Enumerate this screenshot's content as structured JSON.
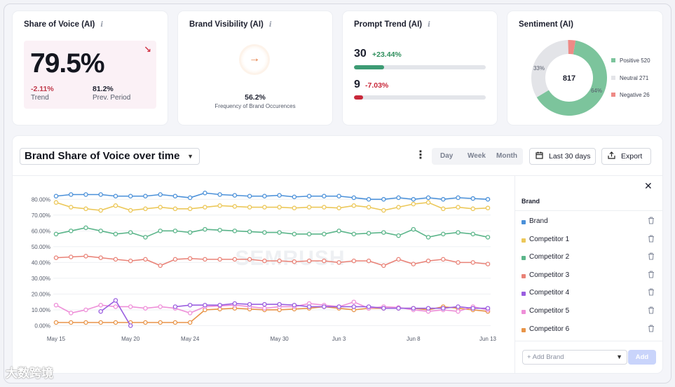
{
  "cards": {
    "share_of_voice": {
      "title": "Share of Voice (AI)",
      "value": "79.5%",
      "trend_value": "-2.11%",
      "trend_label": "Trend",
      "prev_value": "81.2%",
      "prev_label": "Prev. Period"
    },
    "brand_visibility": {
      "title": "Brand Visibility (AI)",
      "value": "56.2%",
      "label": "Frequency of Brand Occurences"
    },
    "prompt_trend": {
      "title": "Prompt Trend (AI)",
      "rows": [
        {
          "count": "30",
          "change": "+23.44%",
          "fill_fraction": 0.23,
          "color": "#3d9b74",
          "change_color": "#2f8f5d"
        },
        {
          "count": "9",
          "change": "-7.03%",
          "fill_fraction": 0.07,
          "color": "#c8283a",
          "change_color": "#c8283a"
        }
      ]
    },
    "sentiment": {
      "title": "Sentiment (AI)",
      "total": "817",
      "positive_pct_label": "64%",
      "neutral_pct_label": "33%",
      "legend": [
        {
          "label": "Positive 520",
          "color": "#7cc49c"
        },
        {
          "label": "Neutral 271",
          "color": "#e3e4e8"
        },
        {
          "label": "Negative 26",
          "color": "#ee8a86"
        }
      ],
      "segments": [
        {
          "name": "Positive",
          "value": 520,
          "color": "#7cc49c"
        },
        {
          "name": "Neutral",
          "value": 271,
          "color": "#e3e4e8"
        },
        {
          "name": "Negative",
          "value": 26,
          "color": "#ee8a86"
        }
      ]
    }
  },
  "main": {
    "title": "Brand Share of Voice over time",
    "periods": [
      "Day",
      "Week",
      "Month"
    ],
    "range_label": "Last 30 days",
    "export_label": "Export",
    "watermark": "SEMRUSH"
  },
  "panel": {
    "header": "Brand",
    "close": "✕",
    "brands": [
      {
        "label": "Brand",
        "color": "#4a90d9"
      },
      {
        "label": "Competitor 1",
        "color": "#ecc85a"
      },
      {
        "label": "Competitor 2",
        "color": "#5bb58a"
      },
      {
        "label": "Competitor 3",
        "color": "#e98277"
      },
      {
        "label": "Competitor 4",
        "color": "#9a5ee0"
      },
      {
        "label": "Competitor 5",
        "color": "#ee8fd8"
      },
      {
        "label": "Competitor 6",
        "color": "#e89448"
      }
    ],
    "add_placeholder": "+ Add Brand",
    "add_button": "Add"
  },
  "page_watermark": "大数跨境",
  "chart_data": {
    "type": "line",
    "x": [
      "May 15",
      "May 16",
      "May 17",
      "May 18",
      "May 19",
      "May 20",
      "May 21",
      "May 22",
      "May 23",
      "May 24",
      "May 25",
      "May 26",
      "May 27",
      "May 28",
      "May 29",
      "May 30",
      "May 31",
      "Jun 1",
      "Jun 2",
      "Jun 3",
      "Jun 4",
      "Jun 5",
      "Jun 6",
      "Jun 7",
      "Jun 8",
      "Jun 9",
      "Jun 10",
      "Jun 11",
      "Jun 12",
      "Jun 13"
    ],
    "xticks": [
      "May 15",
      "May 20",
      "May 24",
      "May 30",
      "Jun 3",
      "Jun 8",
      "Jun 13"
    ],
    "yticks": [
      "0.00%",
      "10.00%",
      "20.00%",
      "30.00%",
      "40.00%",
      "50.00%",
      "60.00%",
      "70.00%",
      "80.00%"
    ],
    "ylim": [
      -2,
      85
    ],
    "grid": true,
    "series": [
      {
        "name": "Brand",
        "color": "#4a90d9",
        "values": [
          82,
          83,
          83,
          83,
          82,
          82,
          82,
          83,
          82,
          81,
          84,
          83,
          82.5,
          82,
          82,
          82.5,
          81.5,
          82,
          82,
          82,
          81,
          80,
          80,
          81,
          80,
          81,
          80,
          81,
          80.5,
          80
        ]
      },
      {
        "name": "Competitor 1",
        "color": "#ecc85a",
        "values": [
          78,
          75,
          74,
          73,
          76,
          73,
          74,
          75,
          74,
          74,
          75,
          76,
          75.5,
          75,
          75,
          75,
          74.5,
          75,
          75,
          74.5,
          76,
          75,
          73,
          75,
          77,
          78,
          74,
          75,
          74,
          74.5
        ]
      },
      {
        "name": "Competitor 2",
        "color": "#5bb58a",
        "values": [
          58,
          60,
          62,
          60,
          58,
          59,
          56,
          60,
          60,
          59,
          61,
          60.5,
          60,
          59.5,
          59,
          59,
          58,
          58,
          58,
          60,
          58,
          58.5,
          59,
          57,
          61,
          56,
          58,
          59,
          58,
          56
        ]
      },
      {
        "name": "Competitor 3",
        "color": "#e98277",
        "values": [
          43,
          43.5,
          44,
          43,
          42,
          41,
          42,
          38,
          42,
          42.5,
          42,
          42,
          42,
          42,
          41,
          41,
          40.5,
          41,
          41,
          40,
          41,
          41,
          38,
          42,
          39,
          41,
          42,
          40,
          40,
          39
        ]
      },
      {
        "name": "Competitor 4",
        "color": "#9a5ee0",
        "values": [
          null,
          null,
          null,
          9,
          16,
          0,
          null,
          null,
          12,
          13,
          13,
          13,
          14,
          13.5,
          13.5,
          13.5,
          13,
          12,
          12,
          12,
          12,
          12,
          11,
          11,
          11,
          11,
          11,
          12,
          11,
          11
        ]
      },
      {
        "name": "Competitor 5",
        "color": "#ee8fd8",
        "values": [
          13,
          8,
          10,
          13,
          12,
          12,
          11,
          12,
          11,
          8,
          12,
          12.5,
          13,
          12,
          11,
          12,
          12,
          14,
          13,
          12,
          15,
          11,
          12,
          11.5,
          10,
          9,
          10,
          9,
          12,
          10
        ]
      },
      {
        "name": "Competitor 6",
        "color": "#e89448",
        "values": [
          2,
          2,
          2,
          2,
          2,
          2,
          2,
          2,
          2,
          2,
          10,
          10.5,
          11,
          10.5,
          10,
          10,
          10.5,
          11,
          12,
          11,
          10,
          11,
          11,
          11,
          11,
          10,
          12,
          11,
          10,
          9
        ]
      }
    ]
  }
}
